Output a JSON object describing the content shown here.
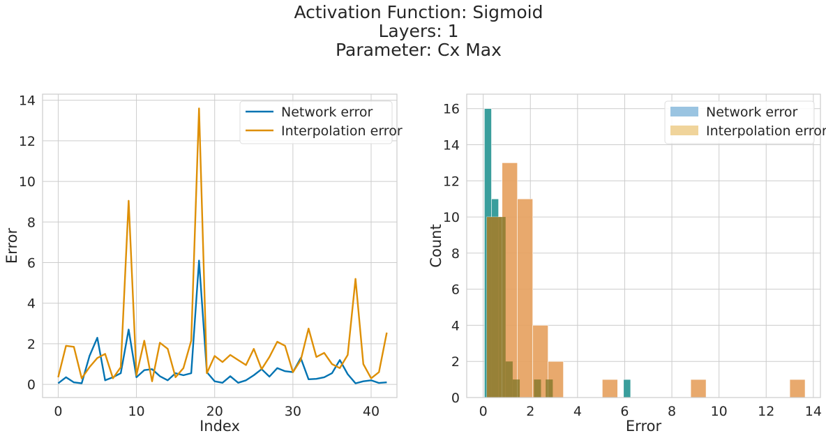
{
  "suptitle": [
    "Activation Function: Sigmoid",
    "Layers: 1",
    "Parameter: Cx Max"
  ],
  "colors": {
    "network_line": "#0173b2",
    "interp_line": "#de8f05",
    "network_hist": "#3a9e9c",
    "network_hist_legend": "#9ac4e1",
    "interp_hist": "#e6a261",
    "interp_hist_legend": "#f0d49b",
    "overlap": "#8c7b2f"
  },
  "chart_data": [
    {
      "type": "line",
      "xlabel": "Index",
      "ylabel": "Error",
      "xlim": [
        -2,
        43.3
      ],
      "ylim": [
        -0.65,
        14.3
      ],
      "xticks": [
        0,
        10,
        20,
        30,
        40
      ],
      "yticks": [
        0,
        2,
        4,
        6,
        8,
        10,
        12,
        14
      ],
      "grid": true,
      "legend": "top-right",
      "series": [
        {
          "name": "Network error",
          "color": "#0173b2",
          "x": [
            0,
            1,
            2,
            3,
            4,
            5,
            6,
            7,
            8,
            9,
            10,
            11,
            12,
            13,
            14,
            15,
            16,
            17,
            18,
            19,
            20,
            21,
            22,
            23,
            24,
            25,
            26,
            27,
            28,
            29,
            30,
            31,
            32,
            33,
            34,
            35,
            36,
            37,
            38,
            39,
            40,
            41,
            42
          ],
          "values": [
            0.05,
            0.35,
            0.1,
            0.05,
            1.4,
            2.3,
            0.2,
            0.35,
            0.55,
            2.7,
            0.35,
            0.7,
            0.75,
            0.4,
            0.2,
            0.55,
            0.45,
            0.55,
            6.1,
            0.6,
            0.15,
            0.08,
            0.4,
            0.08,
            0.2,
            0.45,
            0.75,
            0.38,
            0.8,
            0.65,
            0.6,
            1.3,
            0.25,
            0.27,
            0.35,
            0.55,
            1.2,
            0.5,
            0.05,
            0.15,
            0.2,
            0.07,
            0.1
          ]
        },
        {
          "name": "Interpolation error",
          "color": "#de8f05",
          "x": [
            0,
            1,
            2,
            3,
            4,
            5,
            6,
            7,
            8,
            9,
            10,
            11,
            12,
            13,
            14,
            15,
            16,
            17,
            18,
            19,
            20,
            21,
            22,
            23,
            24,
            25,
            26,
            27,
            28,
            29,
            30,
            31,
            32,
            33,
            34,
            35,
            36,
            37,
            38,
            39,
            40,
            41,
            42
          ],
          "values": [
            0.35,
            1.9,
            1.85,
            0.3,
            0.85,
            1.3,
            1.5,
            0.3,
            0.85,
            9.05,
            0.45,
            2.15,
            0.15,
            2.05,
            1.75,
            0.35,
            0.8,
            2.15,
            13.6,
            0.55,
            1.4,
            1.1,
            1.45,
            1.2,
            0.95,
            1.75,
            0.75,
            1.35,
            2.1,
            1.9,
            0.6,
            1.2,
            2.75,
            1.35,
            1.55,
            1.0,
            0.8,
            1.45,
            5.2,
            1.0,
            0.3,
            0.6,
            2.55
          ]
        }
      ]
    },
    {
      "type": "bar",
      "subtype": "histogram",
      "xlabel": "Error",
      "ylabel": "Count",
      "xlim": [
        -0.7,
        14.3
      ],
      "ylim": [
        0,
        16.8
      ],
      "xticks": [
        0,
        2,
        4,
        6,
        8,
        10,
        12,
        14
      ],
      "yticks": [
        0,
        2,
        4,
        6,
        8,
        10,
        12,
        14,
        16
      ],
      "grid": true,
      "legend": "top-right",
      "series": [
        {
          "name": "Network error",
          "color": "#3a9e9c",
          "bins": [
            [
              0.05,
              0.35,
              16
            ],
            [
              0.35,
              0.65,
              11
            ],
            [
              0.65,
              0.95,
              10
            ],
            [
              0.95,
              1.25,
              2
            ],
            [
              1.25,
              1.55,
              1
            ],
            [
              2.15,
              2.45,
              1
            ],
            [
              2.65,
              2.95,
              1
            ],
            [
              5.95,
              6.25,
              1
            ]
          ]
        },
        {
          "name": "Interpolation error",
          "color": "#e6a261",
          "bins": [
            [
              0.15,
              0.8,
              10
            ],
            [
              0.8,
              1.45,
              13
            ],
            [
              1.45,
              2.1,
              11
            ],
            [
              2.1,
              2.75,
              4
            ],
            [
              2.75,
              3.4,
              2
            ],
            [
              5.05,
              5.7,
              1
            ],
            [
              8.8,
              9.45,
              1
            ],
            [
              13.0,
              13.65,
              1
            ]
          ]
        }
      ]
    }
  ]
}
